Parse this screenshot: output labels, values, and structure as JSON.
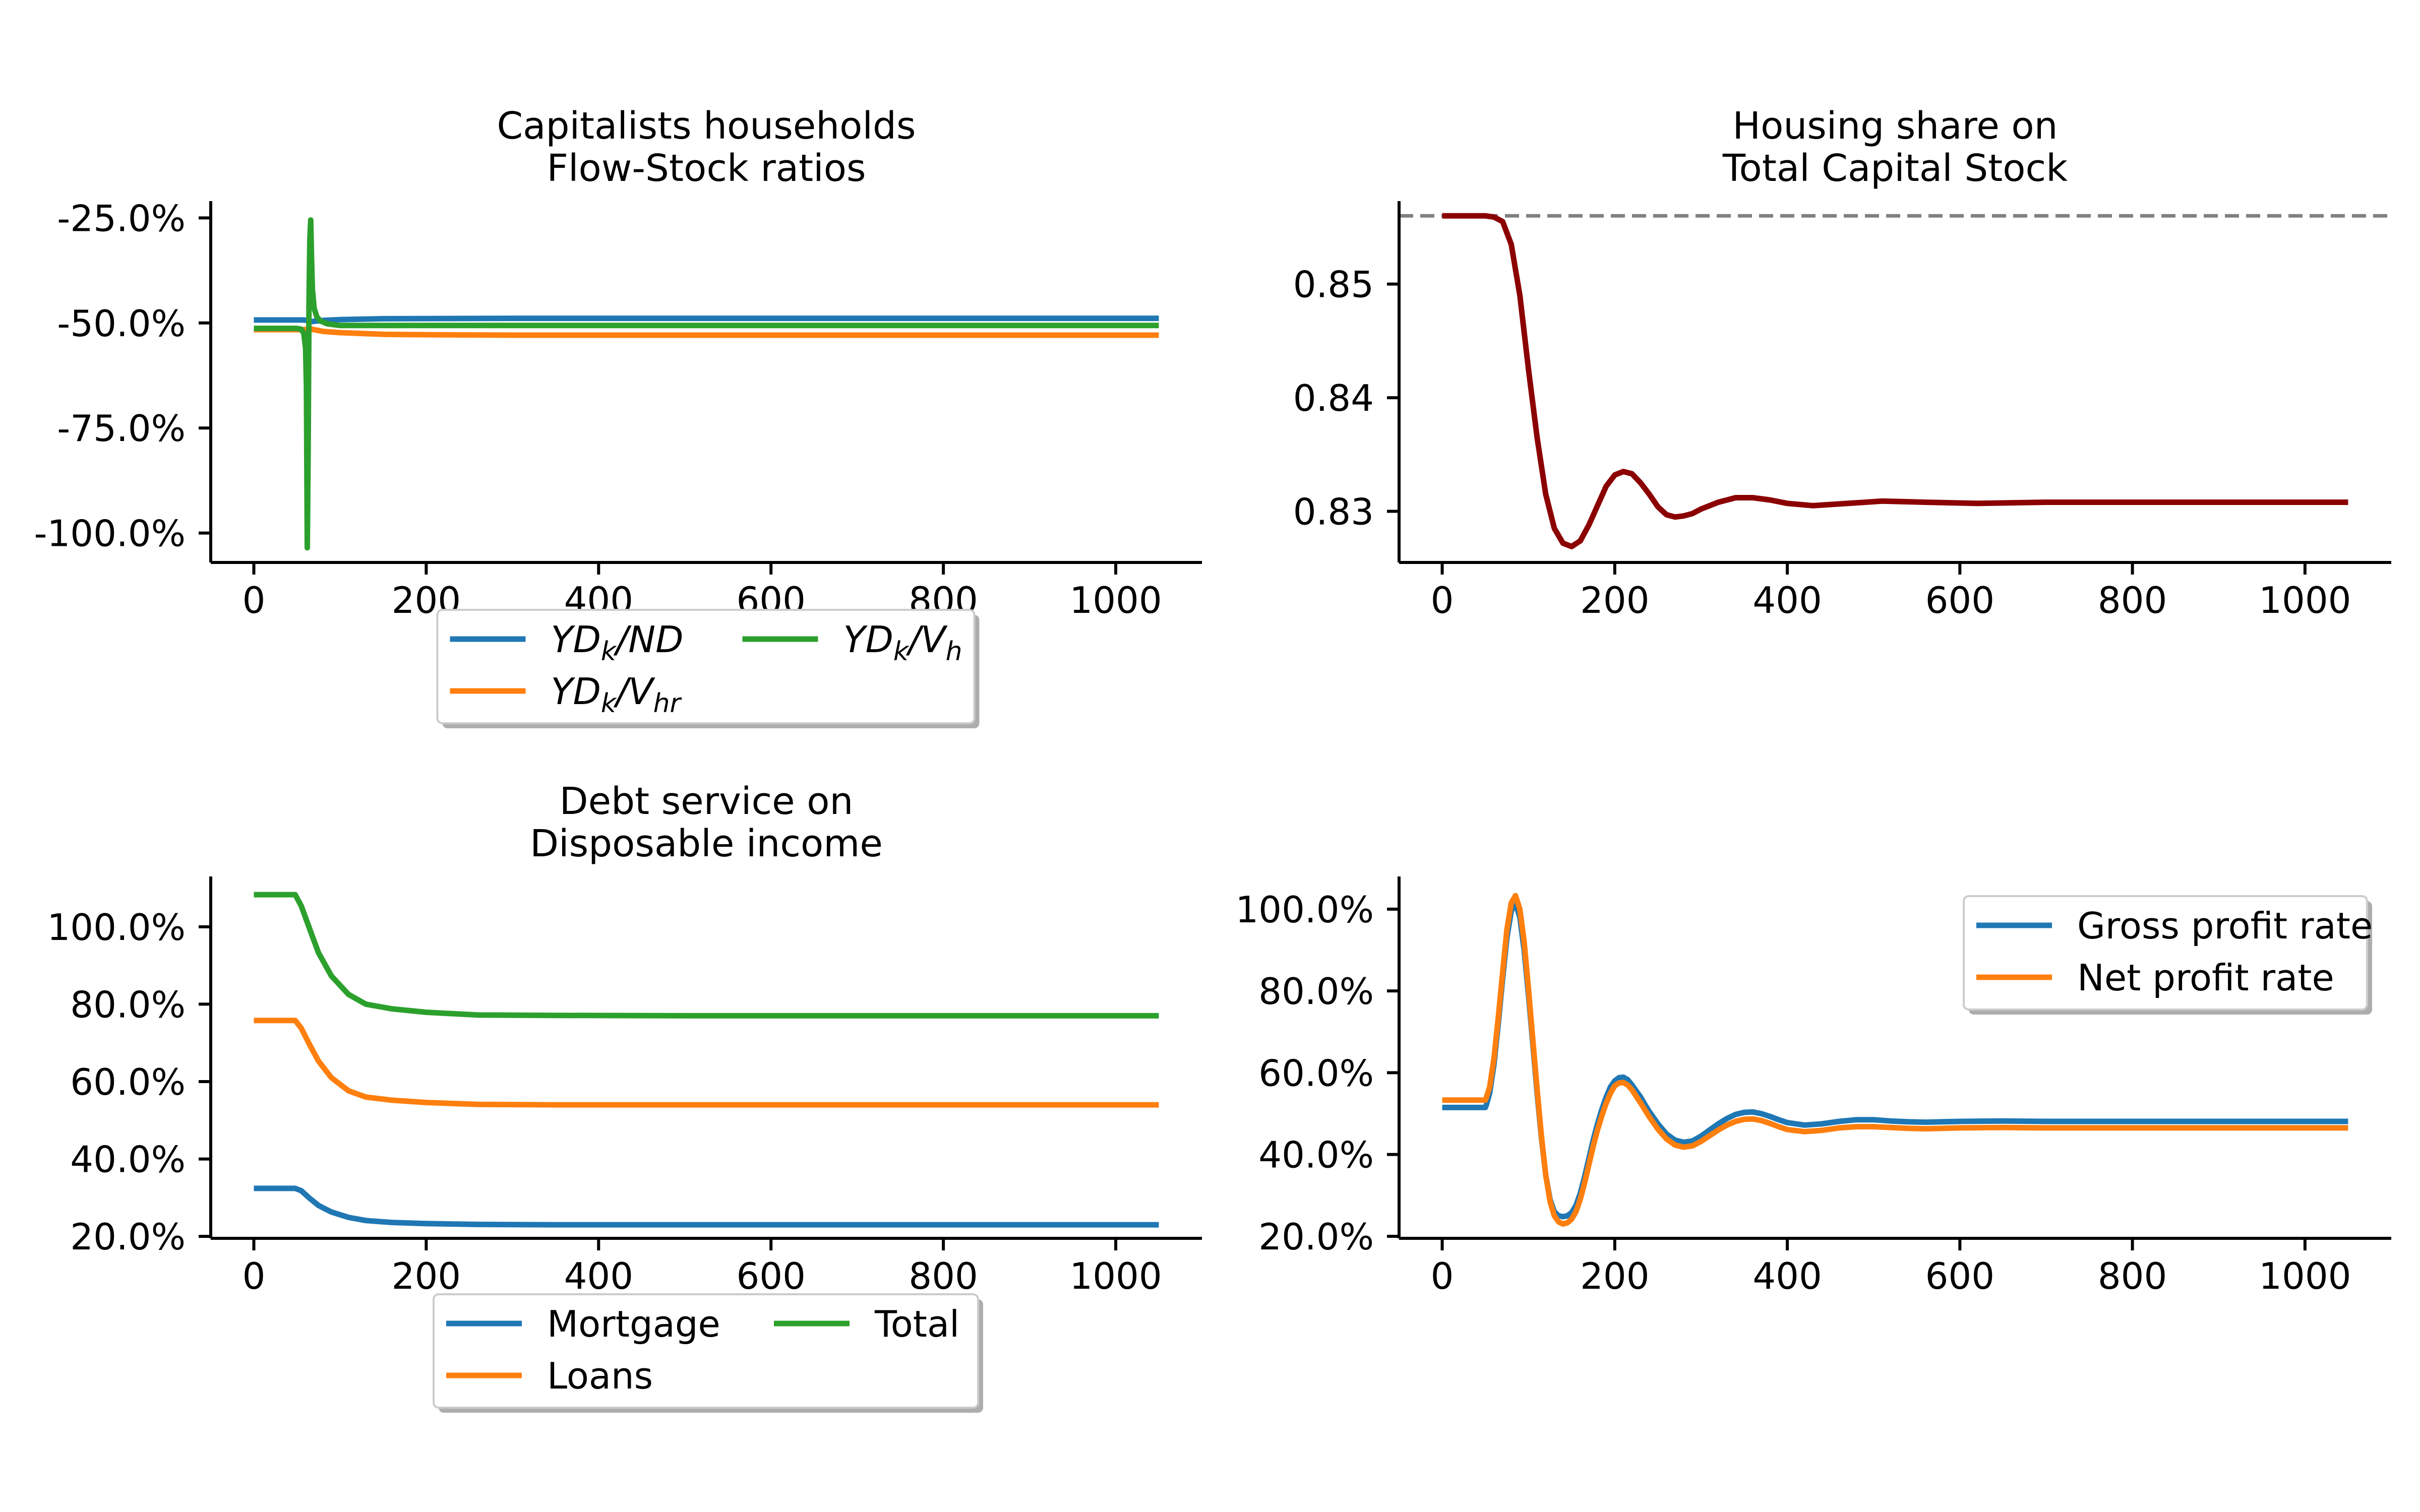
{
  "chart_data": [
    {
      "id": "panel1",
      "type": "line",
      "title": "Capitalists households\nFlow-Stock ratios",
      "xlabel": "",
      "ylabel": "",
      "xlim": [
        -50,
        1100
      ],
      "ylim": [
        -107,
        -21
      ],
      "x_ticks": [
        0,
        200,
        400,
        600,
        800,
        1000
      ],
      "x_tick_labels": [
        "0",
        "200",
        "400",
        "600",
        "800",
        "1000"
      ],
      "y_ticks": [
        -100,
        -75,
        -50,
        -25
      ],
      "y_tick_labels": [
        "-100.0%",
        "-75.0%",
        "-50.0%",
        "-25.0%"
      ],
      "grid": false,
      "legend": {
        "placement": "below-center",
        "columns": 2
      },
      "series": [
        {
          "name": "YD_k/ND",
          "name_parts": [
            "YD",
            "k",
            "/ND"
          ],
          "color": "#1f77b4",
          "x": [
            0,
            50,
            55,
            58,
            62,
            66,
            70,
            80,
            100,
            150,
            300,
            500,
            800,
            1050
          ],
          "y": [
            -49.3,
            -49.3,
            -49.3,
            -49.3,
            -49.4,
            -49.7,
            -49.6,
            -49.4,
            -49.2,
            -49.0,
            -48.9,
            -48.9,
            -48.9,
            -48.9
          ]
        },
        {
          "name": "YD_k/V_hr",
          "name_parts": [
            "YD",
            "k",
            "/V",
            "hr"
          ],
          "color": "#ff7f0e",
          "x": [
            0,
            50,
            55,
            58,
            62,
            66,
            70,
            80,
            100,
            150,
            200,
            300,
            500,
            800,
            1050
          ],
          "y": [
            -51.6,
            -51.6,
            -51.6,
            -51.6,
            -51.5,
            -51.4,
            -51.6,
            -52.0,
            -52.3,
            -52.7,
            -52.8,
            -52.9,
            -52.9,
            -52.9,
            -52.9
          ]
        },
        {
          "name": "YD_k/V_h",
          "name_parts": [
            "YD",
            "k",
            "/V",
            "h"
          ],
          "color": "#2ca02c",
          "x": [
            0,
            50,
            55,
            58,
            60,
            61,
            62,
            63,
            64,
            65,
            66,
            67,
            68,
            70,
            73,
            77,
            85,
            100,
            150,
            300,
            600,
            1050
          ],
          "y": [
            -51.3,
            -51.3,
            -51.5,
            -52.5,
            -56.0,
            -65.0,
            -103.5,
            -80.0,
            -45.0,
            -30.0,
            -25.5,
            -35.0,
            -42.0,
            -46.5,
            -48.5,
            -49.5,
            -50.2,
            -50.6,
            -50.6,
            -50.6,
            -50.6,
            -50.6
          ]
        }
      ]
    },
    {
      "id": "panel2",
      "type": "line",
      "title": "Housing share on\nTotal Capital Stock",
      "xlabel": "",
      "ylabel": "",
      "xlim": [
        -50,
        1100
      ],
      "ylim": [
        0.8255,
        0.8573
      ],
      "x_ticks": [
        0,
        200,
        400,
        600,
        800,
        1000
      ],
      "x_tick_labels": [
        "0",
        "200",
        "400",
        "600",
        "800",
        "1000"
      ],
      "y_ticks": [
        0.83,
        0.84,
        0.85
      ],
      "y_tick_labels": [
        "0.83",
        "0.84",
        "0.85"
      ],
      "grid": false,
      "reference_line": {
        "y": 0.856,
        "style": "dashed",
        "color": "#808080"
      },
      "series": [
        {
          "name": "",
          "color": "#8b0000",
          "x": [
            0,
            50,
            60,
            70,
            80,
            90,
            100,
            110,
            120,
            130,
            140,
            150,
            160,
            170,
            180,
            190,
            200,
            210,
            220,
            230,
            240,
            250,
            260,
            270,
            280,
            290,
            300,
            320,
            340,
            360,
            380,
            400,
            430,
            470,
            510,
            560,
            620,
            700,
            800,
            1050
          ],
          "y": [
            0.856,
            0.856,
            0.8559,
            0.8555,
            0.8535,
            0.849,
            0.8425,
            0.8365,
            0.8315,
            0.8285,
            0.8272,
            0.8269,
            0.8274,
            0.8288,
            0.8305,
            0.8322,
            0.8332,
            0.8335,
            0.8333,
            0.8325,
            0.8315,
            0.8304,
            0.8297,
            0.8295,
            0.8296,
            0.8298,
            0.8302,
            0.8308,
            0.8312,
            0.8312,
            0.831,
            0.8307,
            0.8305,
            0.8307,
            0.8309,
            0.8308,
            0.8307,
            0.8308,
            0.8308,
            0.8308
          ]
        }
      ]
    },
    {
      "id": "panel3",
      "type": "line",
      "title": "Debt service on\nDisposable income",
      "xlabel": "",
      "ylabel": "",
      "xlim": [
        -50,
        1100
      ],
      "ylim": [
        19.5,
        113
      ],
      "x_ticks": [
        0,
        200,
        400,
        600,
        800,
        1000
      ],
      "x_tick_labels": [
        "0",
        "200",
        "400",
        "600",
        "800",
        "1000"
      ],
      "y_ticks": [
        20,
        40,
        60,
        80,
        100
      ],
      "y_tick_labels": [
        "20.0%",
        "40.0%",
        "60.0%",
        "80.0%",
        "100.0%"
      ],
      "grid": false,
      "legend": {
        "placement": "below-center",
        "columns": 2
      },
      "series": [
        {
          "name": "Mortgage",
          "color": "#1f77b4",
          "x": [
            0,
            48,
            55,
            65,
            75,
            90,
            110,
            130,
            160,
            200,
            260,
            350,
            500,
            1050
          ],
          "y": [
            32.4,
            32.4,
            31.8,
            29.8,
            28.0,
            26.3,
            24.9,
            24.1,
            23.6,
            23.3,
            23.1,
            23.0,
            23.0,
            23.0
          ]
        },
        {
          "name": "Loans",
          "color": "#ff7f0e",
          "x": [
            0,
            48,
            55,
            65,
            75,
            90,
            110,
            130,
            160,
            200,
            260,
            350,
            500,
            1050
          ],
          "y": [
            75.8,
            75.8,
            73.8,
            69.4,
            65.3,
            61.0,
            57.6,
            56.0,
            55.2,
            54.6,
            54.1,
            54.0,
            54.0,
            54.0
          ]
        },
        {
          "name": "Total",
          "color": "#2ca02c",
          "x": [
            0,
            48,
            55,
            65,
            75,
            90,
            110,
            130,
            160,
            200,
            260,
            350,
            500,
            1050
          ],
          "y": [
            108.3,
            108.3,
            105.4,
            99.3,
            93.3,
            87.3,
            82.5,
            80.0,
            78.8,
            77.9,
            77.2,
            77.1,
            77.0,
            77.0
          ]
        }
      ]
    },
    {
      "id": "panel4",
      "type": "line",
      "title": "",
      "xlabel": "",
      "ylabel": "",
      "xlim": [
        -50,
        1100
      ],
      "ylim": [
        19.5,
        108
      ],
      "x_ticks": [
        0,
        200,
        400,
        600,
        800,
        1000
      ],
      "x_tick_labels": [
        "0",
        "200",
        "400",
        "600",
        "800",
        "1000"
      ],
      "y_ticks": [
        20,
        40,
        60,
        80,
        100
      ],
      "y_tick_labels": [
        "20.0%",
        "40.0%",
        "60.0%",
        "80.0%",
        "100.0%"
      ],
      "grid": false,
      "legend": {
        "placement": "top-right",
        "columns": 1
      },
      "series": [
        {
          "name": "Gross profit rate",
          "color": "#1f77b4",
          "x": [
            0,
            50,
            51,
            55,
            60,
            65,
            70,
            75,
            80,
            85,
            90,
            95,
            100,
            105,
            110,
            115,
            120,
            125,
            130,
            135,
            140,
            145,
            150,
            155,
            160,
            165,
            170,
            175,
            180,
            185,
            190,
            195,
            200,
            205,
            210,
            215,
            220,
            225,
            230,
            235,
            240,
            250,
            260,
            270,
            280,
            290,
            300,
            310,
            320,
            330,
            340,
            350,
            360,
            370,
            380,
            390,
            400,
            420,
            440,
            460,
            480,
            500,
            520,
            540,
            560,
            580,
            600,
            650,
            700,
            800,
            900,
            1050
          ],
          "y": [
            51.5,
            51.5,
            52.0,
            55.0,
            62.0,
            72.0,
            83.0,
            93.0,
            99.5,
            101.5,
            98.0,
            90.0,
            79.0,
            67.0,
            55.0,
            44.0,
            35.0,
            29.0,
            26.0,
            25.0,
            24.8,
            25.0,
            25.8,
            27.5,
            30.5,
            34.5,
            39.0,
            43.5,
            47.5,
            51.0,
            54.0,
            56.5,
            58.0,
            58.8,
            58.9,
            58.3,
            57.0,
            55.5,
            54.0,
            52.2,
            50.5,
            47.5,
            45.0,
            43.5,
            43.0,
            43.3,
            44.5,
            46.0,
            47.5,
            48.8,
            49.8,
            50.3,
            50.4,
            50.0,
            49.3,
            48.5,
            47.8,
            47.2,
            47.5,
            48.1,
            48.5,
            48.5,
            48.2,
            48.0,
            47.9,
            48.0,
            48.1,
            48.2,
            48.1,
            48.1,
            48.1,
            48.1
          ]
        },
        {
          "name": "Net profit rate",
          "color": "#ff7f0e",
          "x": [
            0,
            50,
            51,
            55,
            60,
            65,
            70,
            75,
            80,
            85,
            90,
            95,
            100,
            105,
            110,
            115,
            120,
            125,
            130,
            135,
            140,
            145,
            150,
            155,
            160,
            165,
            170,
            175,
            180,
            185,
            190,
            195,
            200,
            205,
            210,
            215,
            220,
            225,
            230,
            235,
            240,
            250,
            260,
            270,
            280,
            290,
            300,
            310,
            320,
            330,
            340,
            350,
            360,
            370,
            380,
            390,
            400,
            420,
            440,
            460,
            480,
            500,
            520,
            540,
            560,
            580,
            600,
            650,
            700,
            800,
            900,
            1050
          ],
          "y": [
            53.3,
            53.3,
            53.8,
            56.5,
            63.5,
            73.5,
            84.5,
            95.0,
            101.5,
            103.3,
            100.0,
            92.0,
            80.5,
            68.0,
            56.0,
            44.5,
            35.0,
            28.5,
            25.0,
            23.5,
            23.0,
            23.3,
            24.2,
            26.0,
            29.0,
            33.0,
            37.5,
            42.0,
            46.0,
            49.5,
            52.5,
            55.0,
            56.8,
            57.5,
            57.6,
            57.0,
            55.8,
            54.2,
            52.6,
            50.9,
            49.2,
            46.2,
            43.8,
            42.3,
            41.8,
            42.1,
            43.2,
            44.6,
            46.0,
            47.2,
            48.1,
            48.6,
            48.7,
            48.3,
            47.6,
            46.8,
            46.1,
            45.6,
            45.9,
            46.5,
            46.8,
            46.8,
            46.6,
            46.4,
            46.3,
            46.4,
            46.5,
            46.6,
            46.5,
            46.5,
            46.5,
            46.5
          ]
        }
      ]
    }
  ]
}
